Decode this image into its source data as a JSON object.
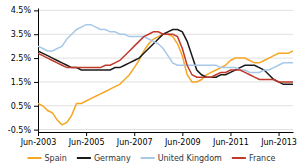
{
  "chart_data": {
    "type": "line",
    "categories": [
      "Jun-2003",
      null,
      null,
      null,
      null,
      null,
      null,
      null,
      null,
      null,
      "Jun-2005",
      null,
      null,
      null,
      null,
      null,
      null,
      null,
      null,
      null,
      "Jun-2007",
      null,
      null,
      null,
      null,
      null,
      null,
      null,
      null,
      null,
      "Jun-2009",
      null,
      null,
      null,
      null,
      null,
      null,
      null,
      null,
      null,
      "Jun-2011",
      null,
      null,
      null,
      null,
      null,
      null,
      null,
      null,
      null,
      "Jun-2013",
      null,
      null,
      null
    ],
    "series": [
      {
        "name": "Spain",
        "color": "#f5a623",
        "values": [
          0.006,
          0.005,
          0.003,
          0.002,
          -0.001,
          -0.003,
          -0.002,
          0.001,
          0.006,
          0.006,
          0.007,
          0.008,
          0.009,
          0.01,
          0.011,
          0.012,
          0.013,
          0.014,
          0.016,
          0.018,
          0.021,
          0.024,
          0.028,
          0.031,
          0.033,
          0.034,
          0.035,
          0.035,
          0.034,
          0.031,
          0.026,
          0.018,
          0.015,
          0.015,
          0.016,
          0.018,
          0.019,
          0.02,
          0.021,
          0.022,
          0.024,
          0.025,
          0.025,
          0.025,
          0.024,
          0.023,
          0.023,
          0.024,
          0.025,
          0.026,
          0.027,
          0.027,
          0.027,
          0.028
        ]
      },
      {
        "name": "Germany",
        "color": "#1a1a1a",
        "values": [
          0.028,
          0.027,
          0.026,
          0.025,
          0.024,
          0.023,
          0.022,
          0.021,
          0.021,
          0.02,
          0.02,
          0.02,
          0.02,
          0.02,
          0.02,
          0.02,
          0.021,
          0.021,
          0.022,
          0.023,
          0.024,
          0.025,
          0.027,
          0.029,
          0.031,
          0.033,
          0.035,
          0.036,
          0.037,
          0.037,
          0.036,
          0.032,
          0.026,
          0.02,
          0.018,
          0.017,
          0.017,
          0.017,
          0.018,
          0.018,
          0.019,
          0.02,
          0.021,
          0.022,
          0.022,
          0.022,
          0.021,
          0.02,
          0.018,
          0.016,
          0.015,
          0.014,
          0.014,
          0.014
        ]
      },
      {
        "name": "United Kingdom",
        "color": "#a8c8e8",
        "values": [
          0.03,
          0.029,
          0.028,
          0.028,
          0.029,
          0.03,
          0.033,
          0.035,
          0.037,
          0.038,
          0.039,
          0.039,
          0.038,
          0.037,
          0.037,
          0.036,
          0.036,
          0.035,
          0.035,
          0.034,
          0.034,
          0.034,
          0.034,
          0.033,
          0.032,
          0.031,
          0.029,
          0.026,
          0.023,
          0.022,
          0.022,
          0.022,
          0.022,
          0.022,
          0.022,
          0.022,
          0.022,
          0.022,
          0.021,
          0.021,
          0.021,
          0.021,
          0.02,
          0.02,
          0.019,
          0.019,
          0.019,
          0.02,
          0.02,
          0.021,
          0.022,
          0.023,
          0.023,
          0.023
        ]
      },
      {
        "name": "France",
        "color": "#c0392b",
        "values": [
          0.027,
          0.026,
          0.025,
          0.024,
          0.023,
          0.022,
          0.021,
          0.021,
          0.021,
          0.021,
          0.021,
          0.021,
          0.021,
          0.021,
          0.022,
          0.022,
          0.023,
          0.024,
          0.026,
          0.028,
          0.03,
          0.032,
          0.034,
          0.035,
          0.036,
          0.036,
          0.035,
          0.035,
          0.035,
          0.034,
          0.029,
          0.022,
          0.018,
          0.017,
          0.017,
          0.017,
          0.017,
          0.018,
          0.019,
          0.019,
          0.02,
          0.02,
          0.02,
          0.019,
          0.018,
          0.017,
          0.016,
          0.016,
          0.016,
          0.016,
          0.015,
          0.015,
          0.015,
          0.015
        ]
      }
    ],
    "ylim": [
      -0.006,
      0.046
    ],
    "yticks": [
      {
        "value": -0.005,
        "label": "-0.5%"
      },
      {
        "value": 0.005,
        "label": "0.5%"
      },
      {
        "value": 0.015,
        "label": "1.5%"
      },
      {
        "value": 0.025,
        "label": "2.5%"
      },
      {
        "value": 0.035,
        "label": "3.5%"
      },
      {
        "value": 0.045,
        "label": "4.5%"
      }
    ],
    "grid": true,
    "legend": "bottom"
  }
}
